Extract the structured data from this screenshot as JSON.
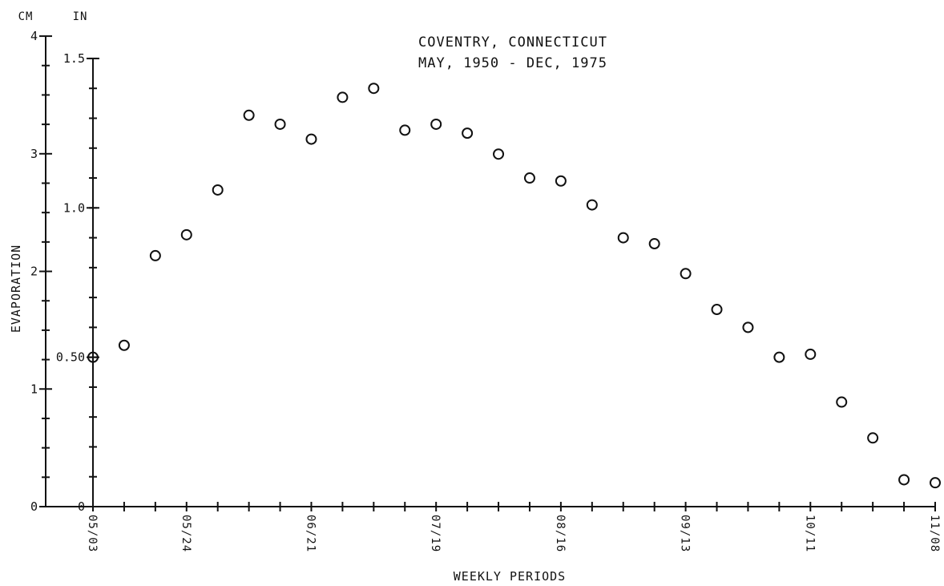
{
  "chart_data": {
    "type": "scatter",
    "title_line1": "COVENTRY, CONNECTICUT",
    "title_line2": "MAY, 1950 - DEC, 1975",
    "xlabel": "WEEKLY PERIODS",
    "ylabel": "EVAPORATION",
    "unit_left": "CM",
    "unit_right": "IN",
    "y_in_ticks": [
      "0",
      "0.50",
      "1.0",
      "1.5"
    ],
    "y_in_values": [
      0,
      0.5,
      1.0,
      1.5
    ],
    "y_cm_ticks": [
      "0",
      "1",
      "2",
      "3",
      "4"
    ],
    "y_cm_values": [
      0,
      1,
      2,
      3,
      4
    ],
    "ylim_in": [
      0,
      1.575
    ],
    "x_tick_labels": [
      "05/03",
      "05/24",
      "06/21",
      "07/19",
      "08/16",
      "09/13",
      "10/11",
      "11/08"
    ],
    "x_tick_weeks": [
      0,
      3,
      7,
      11,
      15,
      19,
      23,
      27
    ],
    "x_minor_weeks": 27,
    "xlim_weeks": [
      0,
      27
    ],
    "marker": "open-circle",
    "points": [
      {
        "week": 0,
        "value": 0.5
      },
      {
        "week": 1,
        "value": 0.54
      },
      {
        "week": 2,
        "value": 0.84
      },
      {
        "week": 3,
        "value": 0.91
      },
      {
        "week": 4,
        "value": 1.06
      },
      {
        "week": 5,
        "value": 1.31
      },
      {
        "week": 6,
        "value": 1.28
      },
      {
        "week": 7,
        "value": 1.23
      },
      {
        "week": 8,
        "value": 1.37
      },
      {
        "week": 9,
        "value": 1.4
      },
      {
        "week": 10,
        "value": 1.26
      },
      {
        "week": 11,
        "value": 1.28
      },
      {
        "week": 12,
        "value": 1.25
      },
      {
        "week": 13,
        "value": 1.18
      },
      {
        "week": 14,
        "value": 1.1
      },
      {
        "week": 15,
        "value": 1.09
      },
      {
        "week": 16,
        "value": 1.01
      },
      {
        "week": 17,
        "value": 0.9
      },
      {
        "week": 18,
        "value": 0.88
      },
      {
        "week": 19,
        "value": 0.78
      },
      {
        "week": 20,
        "value": 0.66
      },
      {
        "week": 21,
        "value": 0.6
      },
      {
        "week": 22,
        "value": 0.5
      },
      {
        "week": 23,
        "value": 0.51
      },
      {
        "week": 24,
        "value": 0.35
      },
      {
        "week": 25,
        "value": 0.23
      },
      {
        "week": 26,
        "value": 0.09
      },
      {
        "week": 27,
        "value": 0.08
      }
    ],
    "grid": false,
    "legend": "none"
  }
}
